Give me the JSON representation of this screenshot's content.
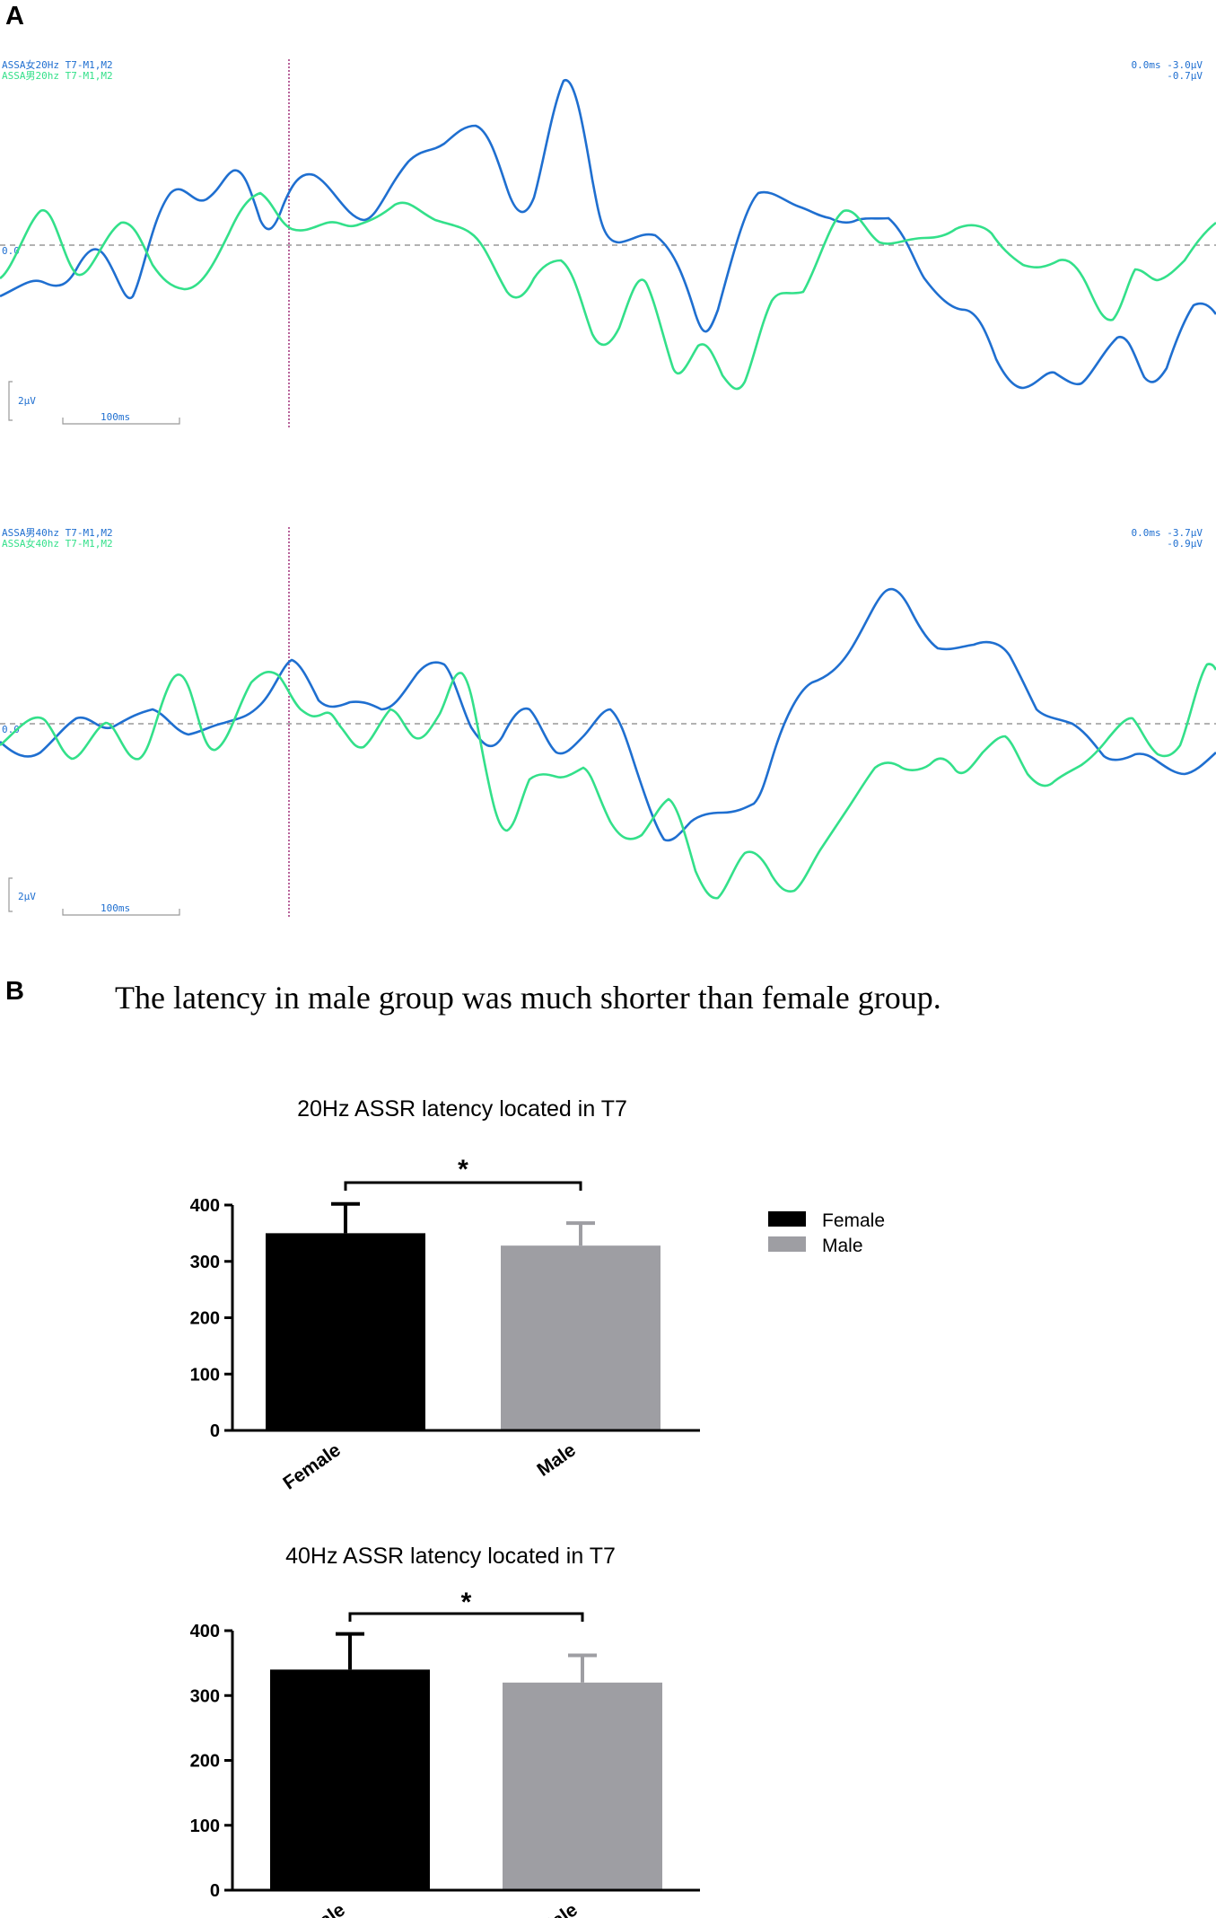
{
  "panels": {
    "a": "A",
    "b": "B"
  },
  "caption": "The latency in male group was much shorter than female group.",
  "colors": {
    "blue": "#1f6fd0",
    "green": "#33e08a",
    "female": "#000000",
    "male": "#9e9ea3",
    "cursor": "#a0307a",
    "baseline": "#999999"
  },
  "waveforms": [
    {
      "labels_left": [
        "ASSA女20Hz T7-M1,M2",
        "ASSA男20hz T7-M1,M2"
      ],
      "labels_right": [
        "0.0ms -3.0µV",
        "-0.7µV"
      ],
      "zero_label": "0.0",
      "scale_label": "2µV",
      "time_label": "100ms"
    },
    {
      "labels_left": [
        "ASSA男40hz T7-M1,M2",
        "ASSA女40hz T7-M1,M2"
      ],
      "labels_right": [
        "0.0ms -3.7µV",
        "-0.9µV"
      ],
      "zero_label": "0.0",
      "scale_label": "2µV",
      "time_label": "100ms"
    }
  ],
  "chart_data": [
    {
      "type": "bar",
      "title": "20Hz  ASSR latency located in T7",
      "categories": [
        "Female",
        "Male"
      ],
      "values": [
        350,
        328
      ],
      "errors": [
        52,
        40
      ],
      "ylim": [
        0,
        400
      ],
      "yticks": [
        0,
        100,
        200,
        300,
        400
      ],
      "significance": "*",
      "legend": [
        "Female",
        "Male"
      ],
      "legend_position": "right",
      "xlabel": "",
      "ylabel": ""
    },
    {
      "type": "bar",
      "title": "40Hz  ASSR latency located in T7",
      "categories": [
        "Female",
        "Male"
      ],
      "values": [
        340,
        320
      ],
      "errors": [
        55,
        42
      ],
      "ylim": [
        0,
        400
      ],
      "yticks": [
        0,
        100,
        200,
        300,
        400
      ],
      "significance": "*",
      "xlabel": "",
      "ylabel": ""
    }
  ]
}
